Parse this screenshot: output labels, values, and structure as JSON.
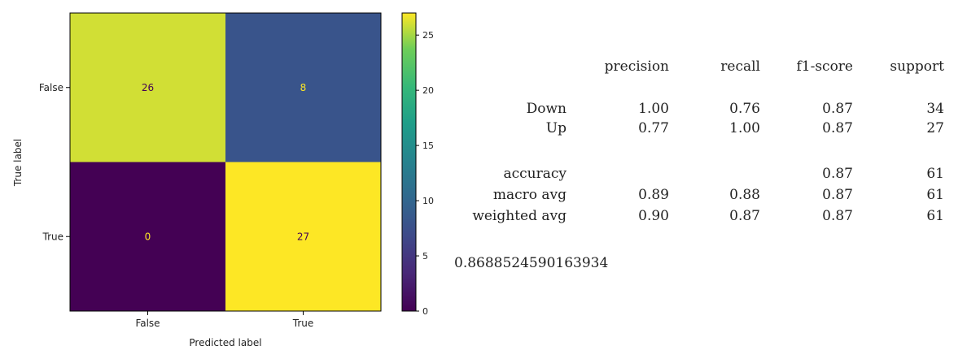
{
  "chart_data": {
    "type": "heatmap",
    "title": "",
    "xlabel": "Predicted label",
    "ylabel": "True label",
    "x_categories": [
      "False",
      "True"
    ],
    "y_categories": [
      "False",
      "True"
    ],
    "values": [
      [
        26,
        8
      ],
      [
        0,
        27
      ]
    ],
    "colormap": "viridis",
    "colorbar": {
      "min": 0,
      "max": 27,
      "ticks": [
        0,
        5,
        10,
        15,
        20,
        25
      ]
    }
  },
  "report": {
    "headers": [
      "precision",
      "recall",
      "f1-score",
      "support"
    ],
    "rows": [
      {
        "label": "Down",
        "precision": "1.00",
        "recall": "0.76",
        "f1": "0.87",
        "support": "34"
      },
      {
        "label": "Up",
        "precision": "0.77",
        "recall": "1.00",
        "f1": "0.87",
        "support": "27"
      }
    ],
    "summary": [
      {
        "label": "accuracy",
        "precision": "",
        "recall": "",
        "f1": "0.87",
        "support": "61"
      },
      {
        "label": "macro avg",
        "precision": "0.89",
        "recall": "0.88",
        "f1": "0.87",
        "support": "61"
      },
      {
        "label": "weighted avg",
        "precision": "0.90",
        "recall": "0.87",
        "f1": "0.87",
        "support": "61"
      }
    ],
    "accuracy_value": "0.8688524590163934"
  }
}
